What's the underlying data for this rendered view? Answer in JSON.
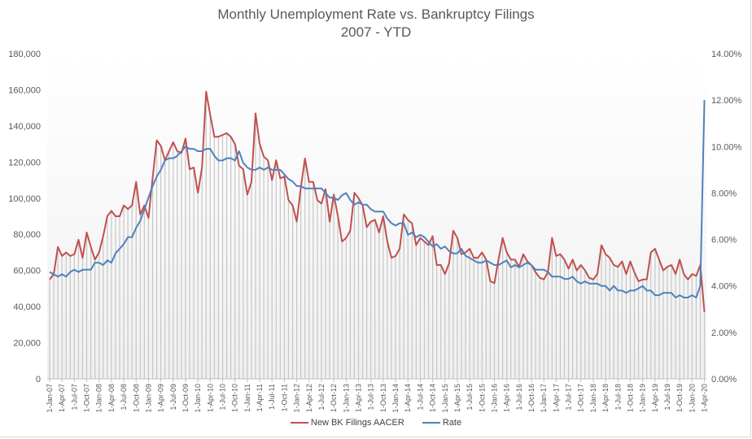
{
  "chart_data": {
    "type": "line",
    "title": "Monthly  Unemployment  Rate  vs.  Bankruptcy  Filings",
    "subtitle": "2007 - YTD",
    "x_start": "Jan 2007",
    "x_end": "Apr 2020",
    "y_left": {
      "min": 0,
      "max": 180000,
      "ticks": [
        "0",
        "20,000",
        "40,000",
        "60,000",
        "80,000",
        "100,000",
        "120,000",
        "140,000",
        "160,000",
        "180,000"
      ]
    },
    "y_right": {
      "min": 0,
      "max": 14,
      "ticks": [
        "0.00%",
        "2.00%",
        "4.00%",
        "6.00%",
        "8.00%",
        "10.00%",
        "12.00%",
        "14.00%"
      ]
    },
    "x_tick_labels": [
      "1-Jan-07",
      "1-Apr-07",
      "1-Jul-07",
      "1-Oct-07",
      "1-Jan-08",
      "1-Apr-08",
      "1-Jul-08",
      "1-Oct-08",
      "1-Jan-09",
      "1-Apr-09",
      "1-Jul-09",
      "1-Oct-09",
      "1-Jan-10",
      "1-Apr-10",
      "1-Jul-10",
      "1-Oct-10",
      "1-Jan-11",
      "1-Apr-11",
      "1-Jul-11",
      "1-Oct-11",
      "1-Jan-12",
      "1-Apr-12",
      "1-Jul-12",
      "1-Oct-12",
      "1-Jan-13",
      "1-Apr-13",
      "1-Jul-13",
      "1-Oct-13",
      "1-Jan-14",
      "1-Apr-14",
      "1-Jul-14",
      "1-Oct-14",
      "1-Jan-15",
      "1-Apr-15",
      "1-Jul-15",
      "1-Oct-15",
      "1-Jan-16",
      "1-Apr-16",
      "1-Jul-16",
      "1-Oct-16",
      "1-Jan-17",
      "1-Apr-17",
      "1-Jul-17",
      "1-Oct-17",
      "1-Jan-18",
      "1-Apr-18",
      "1-Jul-18",
      "1-Oct-18",
      "1-Jan-19",
      "1-Apr-19",
      "1-Jul-19",
      "1-Oct-19",
      "1-Jan-20",
      "1-Apr-20"
    ],
    "legend_position": "bottom",
    "series": [
      {
        "name": "New BK Filings AACER",
        "axis": "left",
        "color": "#c0504d",
        "values": [
          55000,
          58000,
          73000,
          68000,
          70000,
          68000,
          69000,
          77000,
          67000,
          81000,
          73000,
          66000,
          70000,
          79000,
          90000,
          93000,
          90000,
          90000,
          96000,
          94000,
          96000,
          109000,
          91000,
          96000,
          89000,
          111000,
          132000,
          129000,
          121000,
          126000,
          131000,
          126000,
          125000,
          133000,
          116000,
          117000,
          103000,
          117000,
          159000,
          146000,
          134000,
          134000,
          135000,
          136000,
          134000,
          130000,
          118000,
          116000,
          102000,
          109000,
          147000,
          130000,
          123000,
          121000,
          110000,
          121000,
          111000,
          112000,
          99000,
          96000,
          87000,
          106000,
          122000,
          109000,
          109000,
          99000,
          97000,
          105000,
          87000,
          102000,
          90000,
          76000,
          78000,
          82000,
          103000,
          100000,
          96000,
          84000,
          87000,
          88000,
          81000,
          90000,
          76000,
          67000,
          68000,
          72000,
          91000,
          88000,
          86000,
          74000,
          78000,
          76000,
          74000,
          79000,
          63000,
          63000,
          58000,
          64000,
          82000,
          78000,
          69000,
          70000,
          72000,
          67000,
          67000,
          70000,
          66000,
          54000,
          53000,
          66000,
          78000,
          70000,
          66000,
          66000,
          62000,
          69000,
          65000,
          63000,
          59000,
          56000,
          55000,
          59000,
          78000,
          68000,
          69000,
          66000,
          61000,
          66000,
          60000,
          63000,
          60000,
          56000,
          55000,
          58000,
          74000,
          69000,
          67000,
          63000,
          62000,
          65000,
          58000,
          65000,
          59000,
          54000,
          55000,
          55000,
          70000,
          72000,
          66000,
          60000,
          62000,
          63000,
          58000,
          66000,
          58000,
          55000,
          58000,
          57000,
          63000,
          37000
        ]
      },
      {
        "name": "Rate",
        "axis": "right",
        "color": "#4f81bd",
        "values": [
          4.6,
          4.5,
          4.4,
          4.5,
          4.4,
          4.6,
          4.7,
          4.6,
          4.7,
          4.7,
          4.7,
          5.0,
          5.0,
          4.9,
          5.1,
          5.0,
          5.4,
          5.6,
          5.8,
          6.1,
          6.1,
          6.5,
          6.8,
          7.3,
          7.8,
          8.3,
          8.7,
          9.0,
          9.4,
          9.5,
          9.5,
          9.6,
          9.8,
          10.0,
          9.9,
          9.9,
          9.8,
          9.8,
          9.9,
          9.9,
          9.6,
          9.4,
          9.4,
          9.5,
          9.5,
          9.4,
          9.8,
          9.3,
          9.1,
          9.0,
          9.0,
          9.1,
          9.0,
          9.1,
          9.0,
          9.0,
          9.0,
          8.8,
          8.6,
          8.5,
          8.3,
          8.3,
          8.2,
          8.2,
          8.2,
          8.2,
          8.2,
          8.0,
          7.8,
          7.8,
          7.7,
          7.9,
          8.0,
          7.7,
          7.5,
          7.6,
          7.5,
          7.5,
          7.3,
          7.2,
          7.2,
          7.2,
          6.9,
          6.7,
          6.6,
          6.7,
          6.7,
          6.2,
          6.3,
          6.1,
          6.2,
          6.1,
          5.9,
          5.7,
          5.8,
          5.6,
          5.7,
          5.5,
          5.4,
          5.4,
          5.6,
          5.3,
          5.2,
          5.1,
          5.0,
          5.0,
          5.1,
          5.0,
          4.9,
          4.9,
          5.0,
          5.1,
          4.8,
          4.9,
          4.8,
          4.9,
          5.0,
          4.9,
          4.7,
          4.7,
          4.7,
          4.6,
          4.4,
          4.4,
          4.4,
          4.3,
          4.3,
          4.4,
          4.2,
          4.1,
          4.2,
          4.1,
          4.1,
          4.1,
          4.0,
          4.0,
          3.8,
          4.0,
          3.8,
          3.8,
          3.7,
          3.8,
          3.8,
          3.9,
          4.0,
          3.8,
          3.8,
          3.6,
          3.6,
          3.7,
          3.7,
          3.7,
          3.5,
          3.6,
          3.5,
          3.5,
          3.6,
          3.5,
          4.0,
          12.0
        ]
      }
    ]
  }
}
